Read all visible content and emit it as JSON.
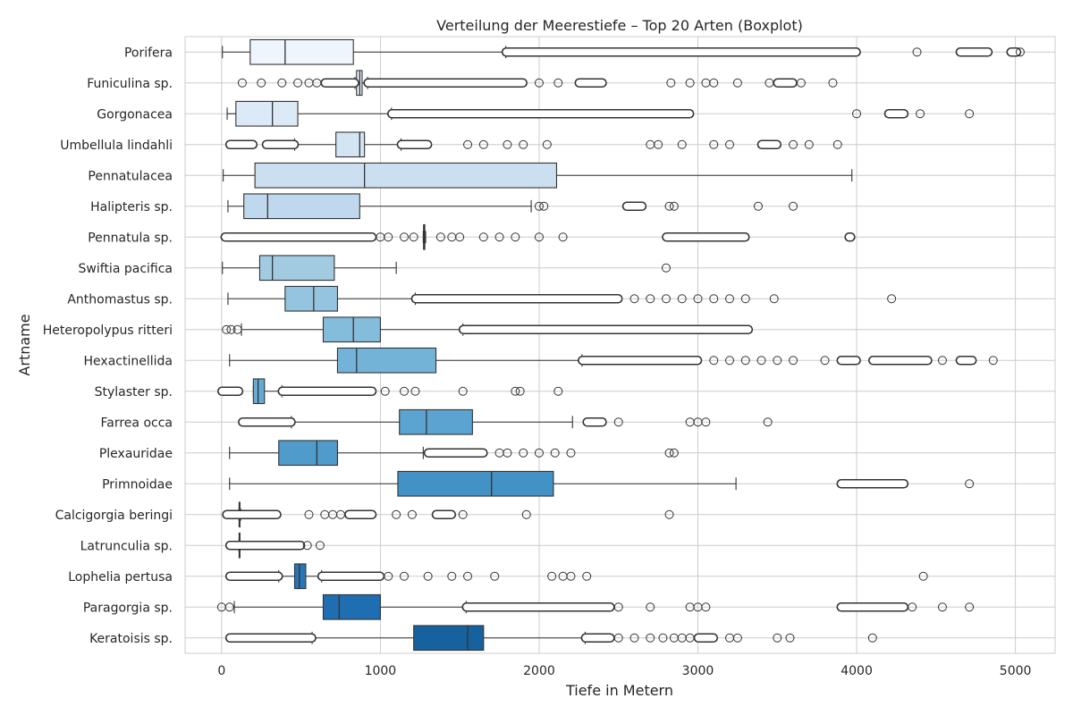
{
  "chart_data": {
    "type": "boxplot",
    "title": "Verteilung der Meerestiefe – Top 20 Arten (Boxplot)",
    "xlabel": "Tiefe in Metern",
    "ylabel": "Artname",
    "xlim": [
      -230,
      5250
    ],
    "xticks": [
      0,
      1000,
      2000,
      3000,
      4000,
      5000
    ],
    "grid": true,
    "series": [
      {
        "name": "Porifera",
        "color": "#eff5fc",
        "whisker_low": 5,
        "q1": 180,
        "median": 400,
        "q3": 830,
        "whisker_high": 1790,
        "outlier_ranges": [
          [
            1790,
            4000
          ],
          [
            4650,
            4830
          ],
          [
            4970,
            5010
          ]
        ],
        "outliers": [
          4380,
          5030
        ]
      },
      {
        "name": "Funiculina sp.",
        "color": "#e7f0fa",
        "whisker_low": 840,
        "q1": 850,
        "median": 870,
        "q3": 885,
        "whisker_high": 920,
        "outlier_ranges": [
          [
            650,
            840
          ],
          [
            920,
            1900
          ],
          [
            2250,
            2400
          ],
          [
            3500,
            3600
          ]
        ],
        "outliers": [
          130,
          250,
          380,
          480,
          550,
          600,
          2000,
          2120,
          2830,
          2950,
          3050,
          3100,
          3250,
          3450,
          3650,
          3850
        ]
      },
      {
        "name": "Gorgonacea",
        "color": "#dce9f6",
        "whisker_low": 35,
        "q1": 90,
        "median": 320,
        "q3": 480,
        "whisker_high": 1070,
        "outlier_ranges": [
          [
            1070,
            2950
          ],
          [
            4200,
            4300
          ]
        ],
        "outliers": [
          4000,
          4400,
          4710
        ]
      },
      {
        "name": "Umbellula lindahli",
        "color": "#d3e4f3",
        "whisker_low": 460,
        "q1": 720,
        "median": 870,
        "q3": 900,
        "whisker_high": 1130,
        "outlier_ranges": [
          [
            50,
            200
          ],
          [
            280,
            460
          ],
          [
            1130,
            1300
          ],
          [
            3400,
            3500
          ]
        ],
        "outliers": [
          1550,
          1650,
          1800,
          1900,
          2050,
          2700,
          2750,
          2900,
          3100,
          3200,
          3600,
          3700,
          3880
        ]
      },
      {
        "name": "Pennatulacea",
        "color": "#cbdff1",
        "whisker_low": 10,
        "q1": 210,
        "median": 900,
        "q3": 2110,
        "whisker_high": 3970,
        "outlier_ranges": [],
        "outliers": []
      },
      {
        "name": "Halipteris sp.",
        "color": "#bfd8ed",
        "whisker_low": 40,
        "q1": 140,
        "median": 290,
        "q3": 870,
        "whisker_high": 1950,
        "outlier_ranges": [
          [
            2550,
            2650
          ]
        ],
        "outliers": [
          2000,
          2030,
          2820,
          2850,
          3380,
          3600
        ]
      },
      {
        "name": "Pennatula sp.",
        "color": "#b1d2e8",
        "whisker_low": 1270,
        "q1": 1272,
        "median": 1275,
        "q3": 1280,
        "whisker_high": 1285,
        "outlier_ranges": [
          [
            20,
            950
          ],
          [
            2800,
            3300
          ],
          [
            3950,
            3965
          ]
        ],
        "outliers": [
          1000,
          1050,
          1150,
          1210,
          1380,
          1450,
          1500,
          1650,
          1750,
          1850,
          2000,
          2150
        ]
      },
      {
        "name": "Swiftia pacifica",
        "color": "#a2cbe2",
        "whisker_low": 5,
        "q1": 240,
        "median": 320,
        "q3": 710,
        "whisker_high": 1100,
        "outlier_ranges": [],
        "outliers": [
          2800
        ]
      },
      {
        "name": "Anthomastus sp.",
        "color": "#94c4df",
        "whisker_low": 40,
        "q1": 400,
        "median": 580,
        "q3": 730,
        "whisker_high": 1220,
        "outlier_ranges": [
          [
            1220,
            2500
          ]
        ],
        "outliers": [
          2600,
          2700,
          2800,
          2900,
          3000,
          3100,
          3200,
          3300,
          3480,
          4220
        ]
      },
      {
        "name": "Heteropolypus ritteri",
        "color": "#84bcdb",
        "whisker_low": 125,
        "q1": 640,
        "median": 830,
        "q3": 1000,
        "whisker_high": 1520,
        "outlier_ranges": [
          [
            1520,
            3320
          ]
        ],
        "outliers": [
          30,
          60,
          100
        ]
      },
      {
        "name": "Hexactinellida",
        "color": "#74b3d8",
        "whisker_low": 50,
        "q1": 730,
        "median": 850,
        "q3": 1350,
        "whisker_high": 2270,
        "outlier_ranges": [
          [
            2270,
            3000
          ],
          [
            3900,
            4000
          ],
          [
            4100,
            4450
          ],
          [
            4650,
            4730
          ]
        ],
        "outliers": [
          3100,
          3200,
          3300,
          3400,
          3500,
          3600,
          3800,
          4540,
          4860
        ]
      },
      {
        "name": "Stylaster sp.",
        "color": "#66abd4",
        "whisker_low": 200,
        "q1": 200,
        "median": 230,
        "q3": 270,
        "whisker_high": 380,
        "outlier_ranges": [
          [
            0,
            110
          ],
          [
            380,
            950
          ]
        ],
        "outliers": [
          1030,
          1150,
          1220,
          1520,
          1850,
          1880,
          2120
        ]
      },
      {
        "name": "Farrea occa",
        "color": "#5ba3d0",
        "whisker_low": 440,
        "q1": 1120,
        "median": 1290,
        "q3": 1580,
        "whisker_high": 2210,
        "outlier_ranges": [
          [
            130,
            440
          ],
          [
            2300,
            2400
          ]
        ],
        "outliers": [
          2500,
          2950,
          3000,
          3050,
          3440
        ]
      },
      {
        "name": "Plexauridae",
        "color": "#4f9bcb",
        "whisker_low": 50,
        "q1": 360,
        "median": 600,
        "q3": 730,
        "whisker_high": 1270,
        "outlier_ranges": [
          [
            1300,
            1650
          ]
        ],
        "outliers": [
          1750,
          1800,
          1900,
          2000,
          2100,
          2200,
          2820,
          2850
        ]
      },
      {
        "name": "Primnoidae",
        "color": "#4292c6",
        "whisker_low": 50,
        "q1": 1110,
        "median": 1700,
        "q3": 2090,
        "whisker_high": 3240,
        "outlier_ranges": [
          [
            3900,
            4300
          ]
        ],
        "outliers": [
          4710
        ]
      },
      {
        "name": "Calcigorgia beringi",
        "color": "#3989c1",
        "whisker_low": 110,
        "q1": 110,
        "median": 112,
        "q3": 115,
        "whisker_high": 120,
        "outlier_ranges": [
          [
            30,
            350
          ],
          [
            800,
            950
          ],
          [
            1350,
            1450
          ]
        ],
        "outliers": [
          550,
          650,
          700,
          750,
          1100,
          1200,
          1520,
          1920,
          2820
        ]
      },
      {
        "name": "Latrunculia sp.",
        "color": "#3080bc",
        "whisker_low": 110,
        "q1": 110,
        "median": 112,
        "q3": 113,
        "whisker_high": 115,
        "outlier_ranges": [
          [
            50,
            500
          ]
        ],
        "outliers": [
          540,
          620
        ]
      },
      {
        "name": "Lophelia pertusa",
        "color": "#2777b8",
        "whisker_low": 360,
        "q1": 460,
        "median": 490,
        "q3": 530,
        "whisker_high": 630,
        "outlier_ranges": [
          [
            50,
            360
          ],
          [
            630,
            1000
          ]
        ],
        "outliers": [
          1050,
          1150,
          1300,
          1450,
          1550,
          1720,
          2080,
          2150,
          2200,
          2300,
          4420
        ]
      },
      {
        "name": "Paragorgia sp.",
        "color": "#1f6eb2",
        "whisker_low": 80,
        "q1": 640,
        "median": 740,
        "q3": 1000,
        "whisker_high": 1540,
        "outlier_ranges": [
          [
            1540,
            2450
          ],
          [
            3900,
            4300
          ]
        ],
        "outliers": [
          0,
          50,
          2500,
          2700,
          2950,
          3000,
          3050,
          4350,
          4540,
          4710
        ]
      },
      {
        "name": "Keratoisis sp.",
        "color": "#16629f",
        "whisker_low": 570,
        "q1": 1210,
        "median": 1550,
        "q3": 1650,
        "whisker_high": 2290,
        "outlier_ranges": [
          [
            50,
            570
          ],
          [
            2290,
            2450
          ],
          [
            3000,
            3100
          ]
        ],
        "outliers": [
          2500,
          2600,
          2700,
          2780,
          2850,
          2900,
          2950,
          3200,
          3250,
          3500,
          3580,
          4100
        ]
      }
    ]
  }
}
